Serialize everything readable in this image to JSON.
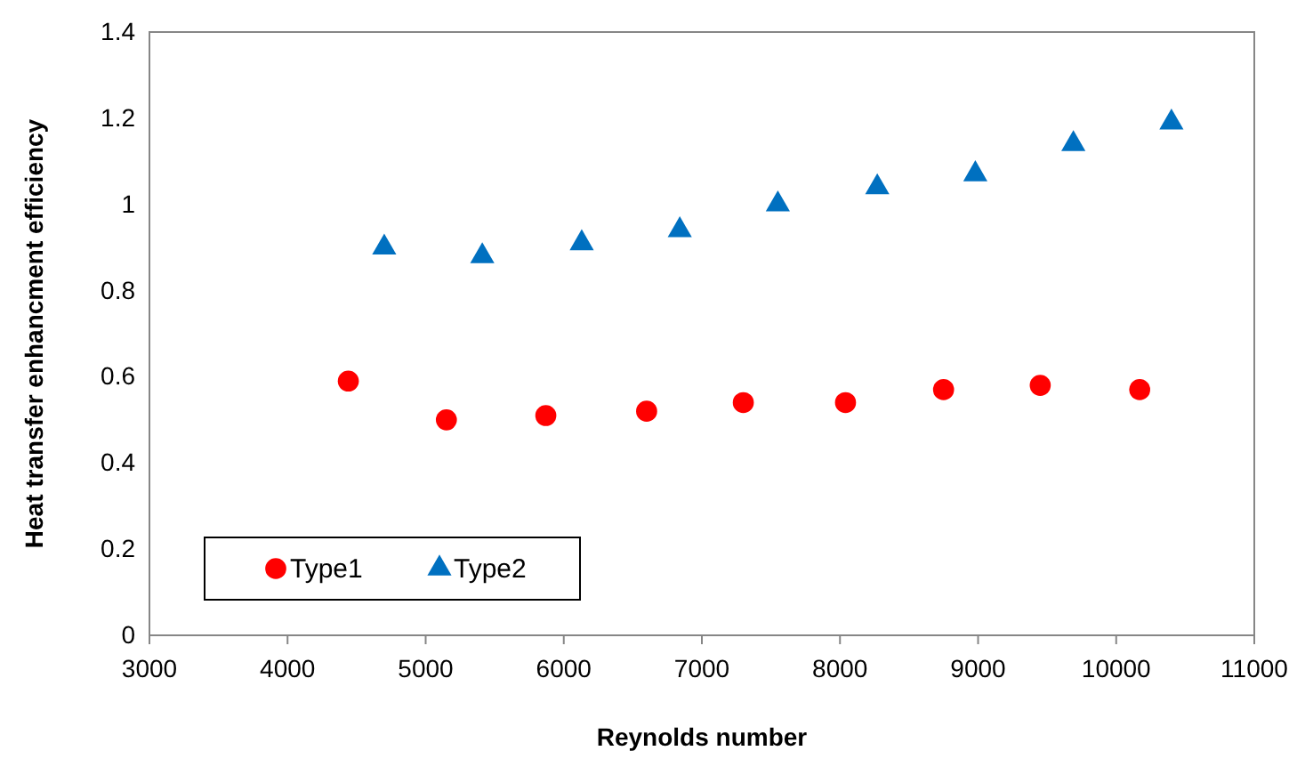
{
  "chart_data": {
    "type": "scatter",
    "xlabel": "Reynolds number",
    "ylabel": "Heat transfer enhancment efficiency",
    "xlim": [
      3000,
      11000
    ],
    "xticks": [
      3000,
      4000,
      5000,
      6000,
      7000,
      8000,
      9000,
      10000,
      11000
    ],
    "ylim": [
      0,
      1.4
    ],
    "yticks": [
      {
        "value": 0,
        "label": "0"
      },
      {
        "value": 0.2,
        "label": "0.2"
      },
      {
        "value": 0.4,
        "label": "0.4"
      },
      {
        "value": 0.6,
        "label": "0.6"
      },
      {
        "value": 0.8,
        "label": "0.8"
      },
      {
        "value": 1,
        "label": "1"
      },
      {
        "value": 1.2,
        "label": "1.2"
      },
      {
        "value": 1.4,
        "label": "1.4"
      }
    ],
    "grid": false,
    "legend": "bottom left",
    "series": [
      {
        "name": "Type1",
        "color": "#ff0000",
        "marker": "circle",
        "x": [
          4440,
          5150,
          5870,
          6600,
          7300,
          8040,
          8750,
          9450,
          10170
        ],
        "values": [
          0.59,
          0.5,
          0.51,
          0.52,
          0.54,
          0.54,
          0.57,
          0.58,
          0.57
        ]
      },
      {
        "name": "Type2",
        "color": "#0070c0",
        "marker": "triangle",
        "x": [
          4700,
          5410,
          6130,
          6840,
          7550,
          8270,
          8980,
          9690,
          10400
        ],
        "values": [
          0.9,
          0.88,
          0.91,
          0.94,
          1.0,
          1.04,
          1.07,
          1.14,
          1.19
        ]
      }
    ]
  }
}
